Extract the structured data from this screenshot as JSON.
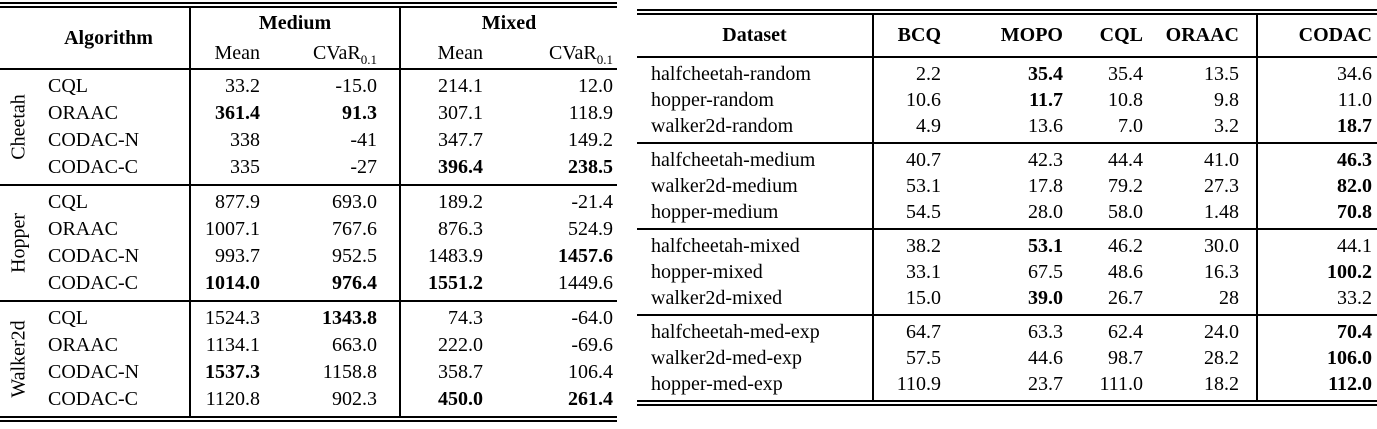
{
  "left_table": {
    "header": {
      "algorithm": "Algorithm",
      "medium": "Medium",
      "mixed": "Mixed",
      "mean": "Mean",
      "cvar_base": "CVaR",
      "cvar_sub": "0.1"
    },
    "sections": [
      {
        "env": "Cheetah",
        "rows": [
          {
            "algorithm": "CQL",
            "values": [
              "33.2",
              "-15.0",
              "214.1",
              "12.0"
            ],
            "bold": []
          },
          {
            "algorithm": "ORAAC",
            "values": [
              "361.4",
              "91.3",
              "307.1",
              "118.9"
            ],
            "bold": [
              0,
              1
            ]
          },
          {
            "algorithm": "CODAC-N",
            "values": [
              "338",
              "-41",
              "347.7",
              "149.2"
            ],
            "bold": []
          },
          {
            "algorithm": "CODAC-C",
            "values": [
              "335",
              "-27",
              "396.4",
              "238.5"
            ],
            "bold": [
              2,
              3
            ]
          }
        ]
      },
      {
        "env": "Hopper",
        "rows": [
          {
            "algorithm": "CQL",
            "values": [
              "877.9",
              "693.0",
              "189.2",
              "-21.4"
            ],
            "bold": []
          },
          {
            "algorithm": "ORAAC",
            "values": [
              "1007.1",
              "767.6",
              "876.3",
              "524.9"
            ],
            "bold": []
          },
          {
            "algorithm": "CODAC-N",
            "values": [
              "993.7",
              "952.5",
              "1483.9",
              "1457.6"
            ],
            "bold": [
              3
            ]
          },
          {
            "algorithm": "CODAC-C",
            "values": [
              "1014.0",
              "976.4",
              "1551.2",
              "1449.6"
            ],
            "bold": [
              0,
              1,
              2
            ]
          }
        ]
      },
      {
        "env": "Walker2d",
        "rows": [
          {
            "algorithm": "CQL",
            "values": [
              "1524.3",
              "1343.8",
              "74.3",
              "-64.0"
            ],
            "bold": [
              1
            ]
          },
          {
            "algorithm": "ORAAC",
            "values": [
              "1134.1",
              "663.0",
              "222.0",
              "-69.6"
            ],
            "bold": []
          },
          {
            "algorithm": "CODAC-N",
            "values": [
              "1537.3",
              "1158.8",
              "358.7",
              "106.4"
            ],
            "bold": [
              0
            ]
          },
          {
            "algorithm": "CODAC-C",
            "values": [
              "1120.8",
              "902.3",
              "450.0",
              "261.4"
            ],
            "bold": [
              2,
              3
            ]
          }
        ]
      }
    ]
  },
  "right_table": {
    "columns": [
      "Dataset",
      "BCQ",
      "MOPO",
      "CQL",
      "ORAAC",
      "CODAC"
    ],
    "groups": [
      {
        "rows": [
          {
            "dataset": "halfcheetah-random",
            "values": [
              "2.2",
              "35.4",
              "35.4",
              "13.5",
              "34.6"
            ],
            "bold": [
              1
            ]
          },
          {
            "dataset": "hopper-random",
            "values": [
              "10.6",
              "11.7",
              "10.8",
              "9.8",
              "11.0"
            ],
            "bold": [
              1
            ]
          },
          {
            "dataset": "walker2d-random",
            "values": [
              "4.9",
              "13.6",
              "7.0",
              "3.2",
              "18.7"
            ],
            "bold": [
              4
            ]
          }
        ]
      },
      {
        "rows": [
          {
            "dataset": "halfcheetah-medium",
            "values": [
              "40.7",
              "42.3",
              "44.4",
              "41.0",
              "46.3"
            ],
            "bold": [
              4
            ]
          },
          {
            "dataset": "walker2d-medium",
            "values": [
              "53.1",
              "17.8",
              "79.2",
              "27.3",
              "82.0"
            ],
            "bold": [
              4
            ]
          },
          {
            "dataset": "hopper-medium",
            "values": [
              "54.5",
              "28.0",
              "58.0",
              "1.48",
              "70.8"
            ],
            "bold": [
              4
            ]
          }
        ]
      },
      {
        "rows": [
          {
            "dataset": "halfcheetah-mixed",
            "values": [
              "38.2",
              "53.1",
              "46.2",
              "30.0",
              "44.1"
            ],
            "bold": [
              1
            ]
          },
          {
            "dataset": "hopper-mixed",
            "values": [
              "33.1",
              "67.5",
              "48.6",
              "16.3",
              "100.2"
            ],
            "bold": [
              4
            ]
          },
          {
            "dataset": "walker2d-mixed",
            "values": [
              "15.0",
              "39.0",
              "26.7",
              "28",
              "33.2"
            ],
            "bold": [
              1
            ]
          }
        ]
      },
      {
        "rows": [
          {
            "dataset": "halfcheetah-med-exp",
            "values": [
              "64.7",
              "63.3",
              "62.4",
              "24.0",
              "70.4"
            ],
            "bold": [
              4
            ]
          },
          {
            "dataset": "walker2d-med-exp",
            "values": [
              "57.5",
              "44.6",
              "98.7",
              "28.2",
              "106.0"
            ],
            "bold": [
              4
            ]
          },
          {
            "dataset": "hopper-med-exp",
            "values": [
              "110.9",
              "23.7",
              "111.0",
              "18.2",
              "112.0"
            ],
            "bold": [
              4
            ]
          }
        ]
      }
    ]
  }
}
